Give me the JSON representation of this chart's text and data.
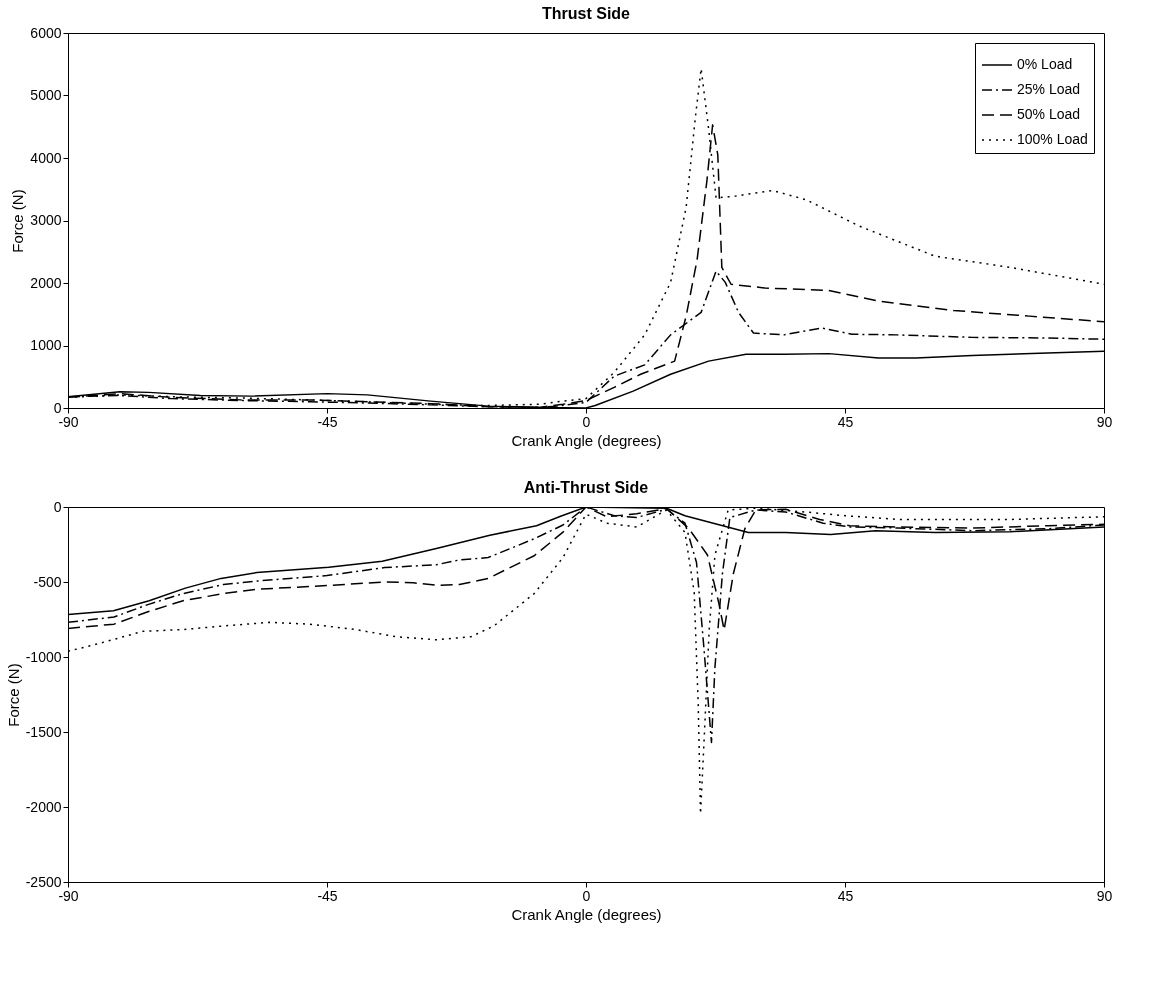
{
  "chart_data": [
    {
      "type": "line",
      "title": "Thrust Side",
      "xlabel": "Crank Angle (degrees)",
      "ylabel": "Force (N)",
      "xlim": [
        -90,
        90
      ],
      "xticks": [
        -90,
        -45,
        0,
        45,
        90
      ],
      "ylim": [
        0,
        6000
      ],
      "yticks": [
        0,
        1000,
        2000,
        3000,
        4000,
        5000,
        6000
      ],
      "grid": false,
      "legend": "top right",
      "marker": "none",
      "series": [
        {
          "name": "0% Load",
          "color": "#000000",
          "line_style": "solid",
          "x": [
            -90,
            -81,
            -76,
            -67,
            -58,
            -45,
            -38,
            -27,
            -17,
            -8,
            0,
            1.6,
            8.2,
            14.7,
            21.3,
            27.8,
            34.4,
            42.2,
            50.8,
            57.3,
            67.1,
            80.2,
            90
          ],
          "values": [
            180,
            260,
            250,
            200,
            190,
            230,
            210,
            110,
            30,
            10,
            0,
            40,
            270,
            540,
            750,
            860,
            860,
            870,
            800,
            800,
            840,
            880,
            910
          ]
        },
        {
          "name": "25% Load",
          "color": "#000000",
          "line_style": "dashdot",
          "x": [
            -90,
            -81,
            -72,
            -60,
            -48,
            -38,
            -27,
            -17,
            -8,
            -5,
            0,
            4.9,
            10.2,
            14.7,
            20,
            22.6,
            24.2,
            26.5,
            29.1,
            34.4,
            40.9,
            46.2,
            54,
            67.1,
            80.2,
            90
          ],
          "values": [
            180,
            200,
            150,
            120,
            100,
            80,
            50,
            20,
            10,
            30,
            90,
            510,
            690,
            1170,
            1530,
            2190,
            2010,
            1530,
            1200,
            1170,
            1280,
            1180,
            1170,
            1130,
            1120,
            1100
          ]
        },
        {
          "name": "50% Load",
          "color": "#000000",
          "line_style": "dashed",
          "x": [
            -90,
            -81,
            -72,
            -60,
            -48,
            -38,
            -27,
            -17,
            -8,
            -4,
            0,
            4.9,
            9.5,
            15.4,
            17.4,
            19.3,
            21,
            22,
            22.9,
            23.6,
            25.2,
            31.1,
            42.2,
            50.8,
            63.9,
            77,
            90
          ],
          "values": [
            170,
            230,
            170,
            130,
            130,
            100,
            70,
            20,
            10,
            60,
            120,
            330,
            540,
            750,
            1470,
            2370,
            3630,
            4530,
            4050,
            2250,
            1980,
            1920,
            1880,
            1710,
            1560,
            1470,
            1380
          ]
        },
        {
          "name": "100% Load",
          "color": "#000000",
          "line_style": "dotted",
          "x": [
            -90,
            -81,
            -72,
            -60,
            -48,
            -38,
            -27,
            -17,
            -8,
            -5,
            0,
            4.9,
            10.2,
            14.7,
            17.4,
            19,
            20,
            21.3,
            22.6,
            25.9,
            32.4,
            38.3,
            47.5,
            60.6,
            73.7,
            90
          ],
          "values": [
            170,
            210,
            180,
            160,
            130,
            100,
            60,
            40,
            60,
            100,
            150,
            570,
            1170,
            2010,
            3210,
            4650,
            5430,
            4470,
            3360,
            3390,
            3480,
            3330,
            2910,
            2430,
            2250,
            1980
          ]
        }
      ]
    },
    {
      "type": "line",
      "title": "Anti-Thrust Side",
      "xlabel": "Crank Angle (degrees)",
      "ylabel": "Force (N)",
      "xlim": [
        -90,
        90
      ],
      "xticks": [
        -90,
        -45,
        0,
        45,
        90
      ],
      "ylim": [
        -2500,
        0
      ],
      "yticks": [
        -2500,
        -2000,
        -1500,
        -1000,
        -500,
        0
      ],
      "grid": false,
      "marker": "none",
      "series": [
        {
          "color": "#000000",
          "line_style": "solid",
          "x": [
            -90,
            -82.1,
            -75.9,
            -69.6,
            -63.4,
            -57.2,
            -44.7,
            -35.4,
            -26,
            -16.7,
            -8.6,
            -4.3,
            0,
            14,
            17.2,
            28.2,
            34.7,
            42.5,
            50.3,
            60.7,
            73.7,
            90
          ],
          "values": [
            -716,
            -692,
            -625,
            -541,
            -476,
            -437,
            -401,
            -361,
            -276,
            -188,
            -125,
            -60,
            0,
            -8,
            -58,
            -170,
            -170,
            -183,
            -158,
            -170,
            -165,
            -133
          ]
        },
        {
          "color": "#000000",
          "line_style": "dashdot",
          "x": [
            -90,
            -82,
            -76,
            -70,
            -63,
            -57,
            -45,
            -35,
            -26,
            -22,
            -17,
            -9,
            -4,
            0,
            4.9,
            8.8,
            14,
            17.2,
            19.2,
            20.5,
            21.8,
            22.4,
            23.7,
            25,
            29.5,
            34.7,
            41.2,
            45.8,
            54.2,
            67.2,
            80.2,
            90
          ],
          "values": [
            -769,
            -733,
            -649,
            -577,
            -517,
            -493,
            -457,
            -404,
            -385,
            -353,
            -337,
            -212,
            -120,
            0,
            -58,
            -70,
            -15,
            -108,
            -370,
            -945,
            -1570,
            -1070,
            -445,
            -70,
            -20,
            -33,
            -108,
            -133,
            -140,
            -158,
            -145,
            -120
          ]
        },
        {
          "color": "#000000",
          "line_style": "dashed",
          "x": [
            -90,
            -82,
            -76,
            -70,
            -63,
            -57,
            -45,
            -35,
            -30,
            -26,
            -22,
            -17,
            -9,
            -4,
            0,
            3.6,
            8.8,
            14,
            17.9,
            21.1,
            23.1,
            24,
            25.6,
            27.6,
            29.5,
            34.7,
            40.6,
            45.8,
            54.2,
            67.2,
            80.2,
            90
          ],
          "values": [
            -810,
            -781,
            -697,
            -625,
            -577,
            -548,
            -524,
            -500,
            -505,
            -522,
            -517,
            -476,
            -325,
            -168,
            0,
            -65,
            -45,
            -10,
            -145,
            -320,
            -645,
            -820,
            -445,
            -145,
            -20,
            -15,
            -83,
            -125,
            -133,
            -140,
            -125,
            -115
          ]
        },
        {
          "color": "#000000",
          "line_style": "dotted",
          "x": [
            -90,
            -85,
            -77,
            -70,
            -63,
            -55,
            -48,
            -40,
            -33,
            -26,
            -20,
            -16,
            -9,
            -4,
            0,
            3.6,
            8.8,
            14,
            17.2,
            18.8,
            19.5,
            19.9,
            20.5,
            21.4,
            22.4,
            24.7,
            29.5,
            38,
            45,
            54.2,
            73.7,
            90
          ],
          "values": [
            -962,
            -914,
            -829,
            -817,
            -793,
            -769,
            -781,
            -817,
            -865,
            -885,
            -865,
            -793,
            -577,
            -337,
            -48,
            -108,
            -133,
            -20,
            -170,
            -570,
            -1320,
            -2045,
            -1570,
            -820,
            -320,
            -20,
            -8,
            -33,
            -58,
            -83,
            -83,
            -65
          ]
        }
      ]
    }
  ]
}
